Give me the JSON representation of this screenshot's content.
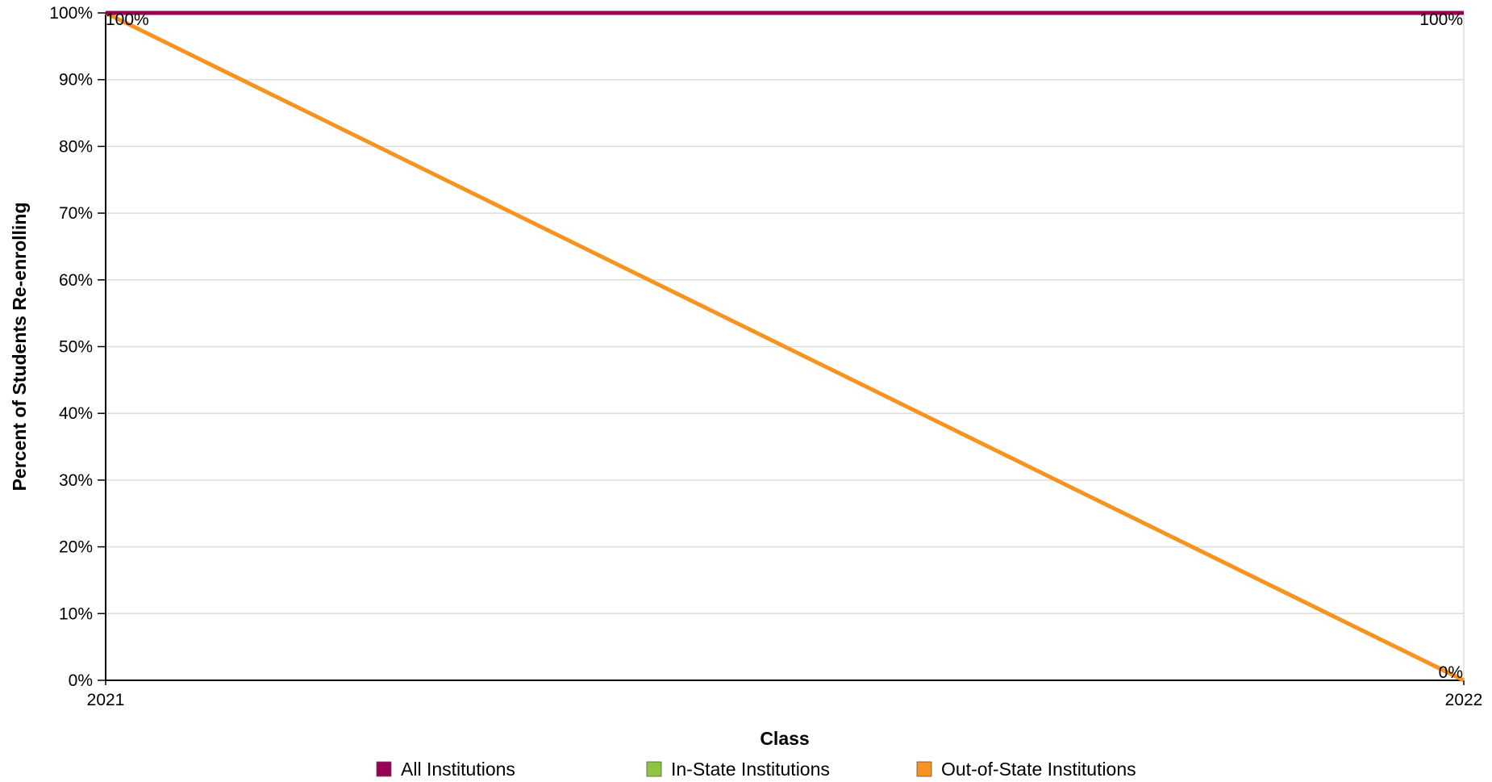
{
  "chart_data": {
    "type": "line",
    "title": "",
    "xlabel": "Class",
    "ylabel": "Percent of Students Re-enrolling",
    "x": [
      "2021",
      "2022"
    ],
    "ylim": [
      0,
      100
    ],
    "yticks": [
      0,
      10,
      20,
      30,
      40,
      50,
      60,
      70,
      80,
      90,
      100
    ],
    "ytick_labels": [
      "0%",
      "10%",
      "20%",
      "30%",
      "40%",
      "50%",
      "60%",
      "70%",
      "80%",
      "90%",
      "100%"
    ],
    "grid": true,
    "legend_position": "bottom",
    "series": [
      {
        "name": "All Institutions",
        "color": "#990055",
        "values": [
          100,
          100
        ],
        "labels": [
          "100%",
          "100%"
        ]
      },
      {
        "name": "In-State Institutions",
        "color": "#8cc63f",
        "values": [
          100,
          100
        ],
        "labels": [
          "",
          ""
        ]
      },
      {
        "name": "Out-of-State Institutions",
        "color": "#f7931e",
        "values": [
          100,
          0
        ],
        "labels": [
          "",
          "0%"
        ]
      }
    ]
  }
}
